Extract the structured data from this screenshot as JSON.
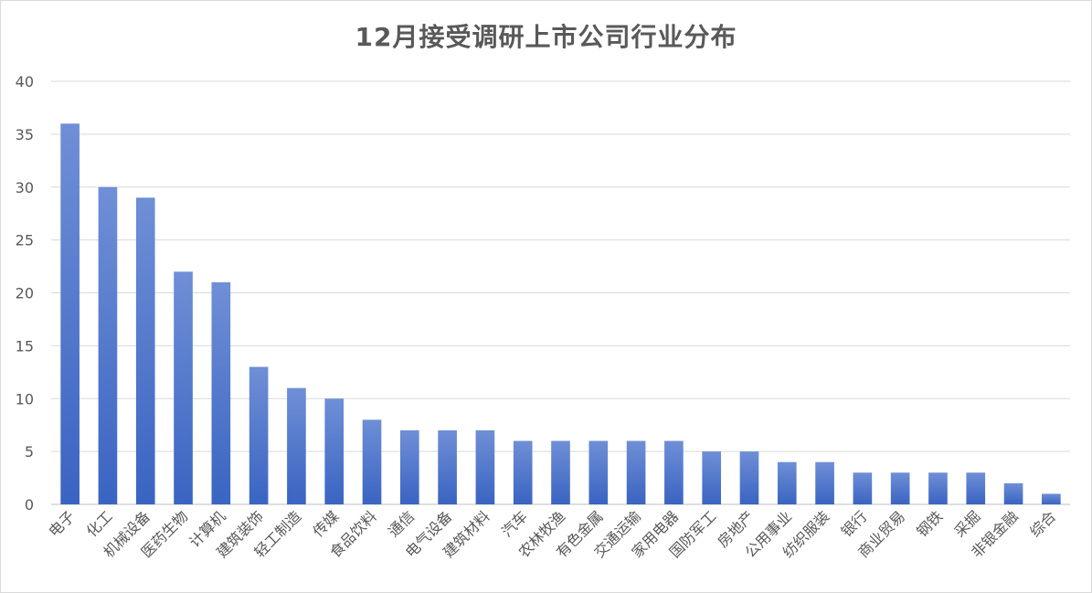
{
  "chart_data": {
    "type": "bar",
    "title": "12月接受调研上市公司行业分布",
    "xlabel": "",
    "ylabel": "",
    "ylim": [
      0,
      40
    ],
    "yticks": [
      0,
      5,
      10,
      15,
      20,
      25,
      30,
      35,
      40
    ],
    "grid": true,
    "legend": "none",
    "bar_color_top": "#6f8fd6",
    "bar_color_bottom": "#3a64c2",
    "categories": [
      "电子",
      "化工",
      "机械设备",
      "医药生物",
      "计算机",
      "建筑装饰",
      "轻工制造",
      "传媒",
      "食品饮料",
      "通信",
      "电气设备",
      "建筑材料",
      "汽车",
      "农林牧渔",
      "有色金属",
      "交通运输",
      "家用电器",
      "国防军工",
      "房地产",
      "公用事业",
      "纺织服装",
      "银行",
      "商业贸易",
      "钢铁",
      "采掘",
      "非银金融",
      "综合"
    ],
    "values": [
      36,
      30,
      29,
      22,
      21,
      13,
      11,
      10,
      8,
      7,
      7,
      7,
      6,
      6,
      6,
      6,
      6,
      5,
      5,
      4,
      4,
      3,
      3,
      3,
      3,
      2,
      1
    ]
  }
}
